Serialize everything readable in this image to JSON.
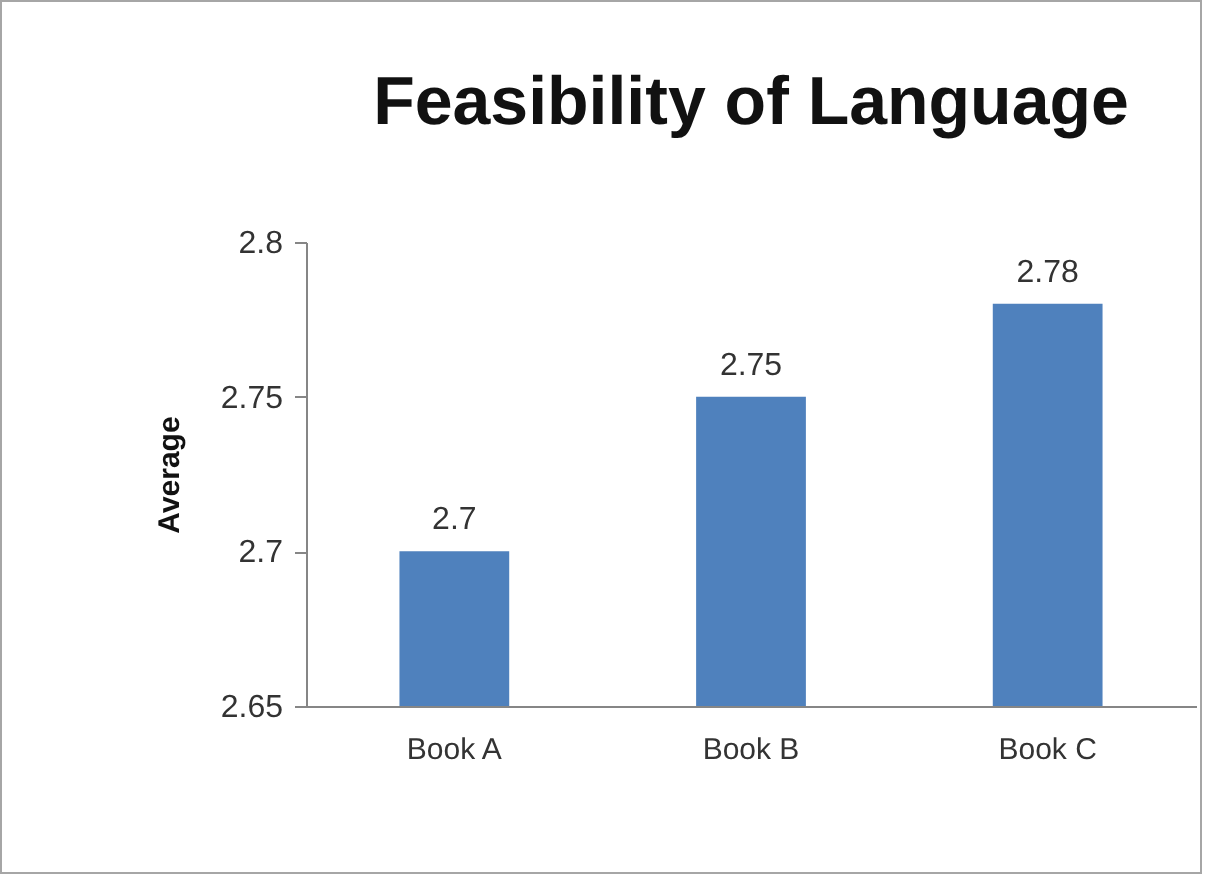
{
  "chart_data": {
    "type": "bar",
    "title": "Feasibility of Language",
    "ylabel": "Average",
    "categories": [
      "Book A",
      "Book B",
      "Book C"
    ],
    "values": [
      2.7,
      2.75,
      2.78
    ],
    "color": "#4f81bd",
    "ylim": [
      2.65,
      2.8
    ],
    "yticks": [
      2.65,
      2.7,
      2.75,
      2.8
    ],
    "data_labels": true
  }
}
